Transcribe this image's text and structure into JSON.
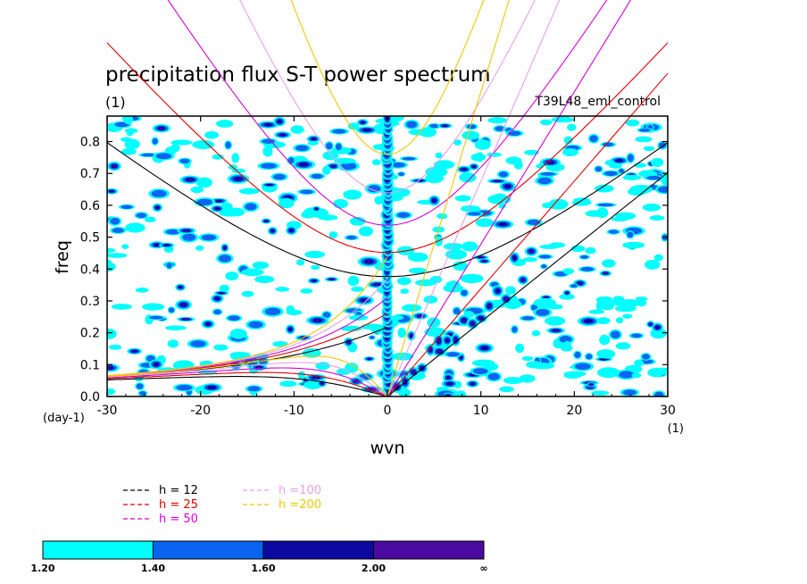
{
  "chart_data": {
    "type": "heatmap",
    "title": "precipitation flux S-T power spectrum",
    "unit_label": "(1)",
    "experiment": "T39L48_eml_control",
    "xlabel": "wvn",
    "ylabel": "freq",
    "x_unit": "(1)",
    "y_unit": "(day-1)",
    "xlim": [
      -30,
      30
    ],
    "ylim": [
      0,
      0.88
    ],
    "x_ticks": [
      -30,
      -20,
      -10,
      0,
      10,
      20,
      30
    ],
    "x_tick_labels": [
      "-30",
      "-20",
      "-10",
      "0",
      "10",
      "20",
      "30"
    ],
    "y_ticks": [
      0,
      0.1,
      0.2,
      0.3,
      0.4,
      0.5,
      0.6,
      0.7,
      0.8
    ],
    "y_tick_labels": [
      "0.0",
      "0.1",
      "0.2",
      "0.3",
      "0.4",
      "0.5",
      "0.6",
      "0.7",
      "0.8"
    ],
    "contour_levels": [
      1.2,
      1.4,
      1.6,
      2.0
    ],
    "colorbar": {
      "boundaries": [
        "1.20",
        "1.40",
        "1.60",
        "2.00",
        "∞"
      ],
      "colors": [
        "#00ffff",
        "#0a64f0",
        "#0a0aa0",
        "#4b0aa0"
      ]
    },
    "dispersion_curves": [
      {
        "label": "h = 12",
        "h": 12,
        "color": "#000000"
      },
      {
        "label": "h = 25",
        "h": 25,
        "color": "#e00000"
      },
      {
        "label": "h = 50",
        "h": 50,
        "color": "#d800d8"
      },
      {
        "label": "h =100",
        "h": 100,
        "color": "#e8a0e8"
      },
      {
        "label": "h =200",
        "h": 200,
        "color": "#f0c800"
      }
    ],
    "max_spectrum_column": {
      "x": 0,
      "y_range": [
        0,
        0.88
      ]
    },
    "grid": false
  }
}
